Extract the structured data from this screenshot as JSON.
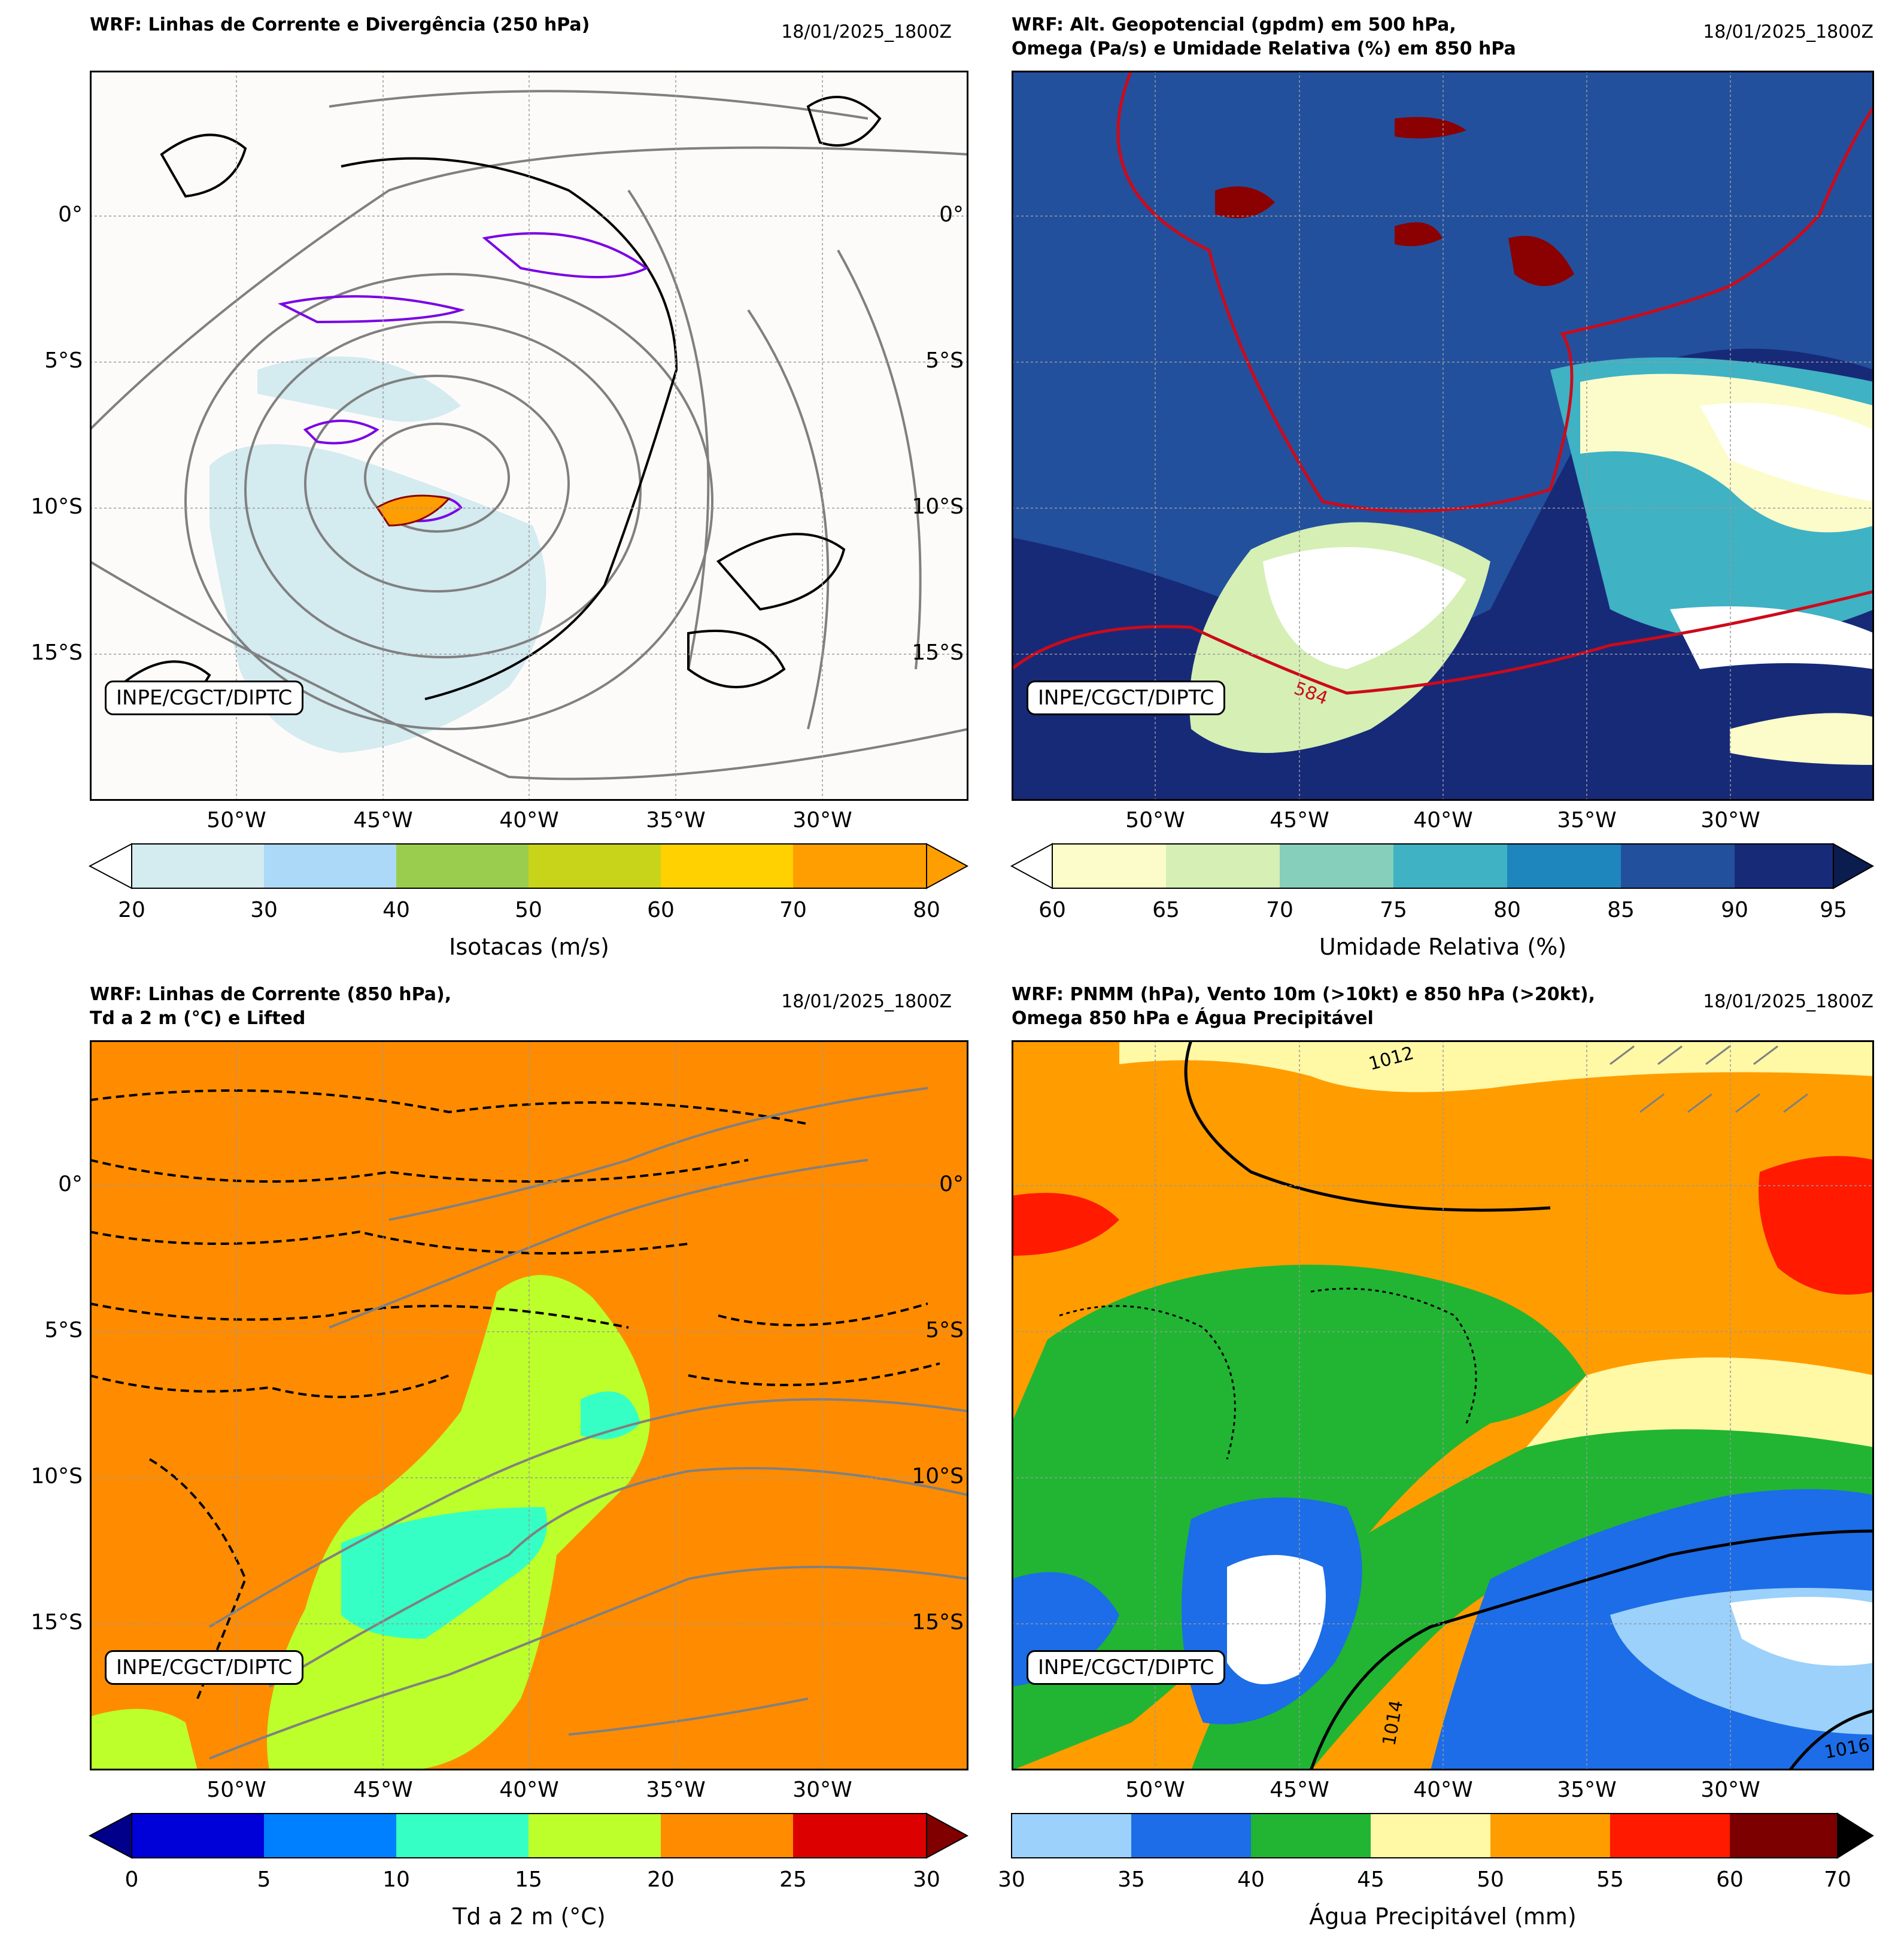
{
  "panels": [
    {
      "title": "WRF: Linhas de Corrente e Divergência (250 hPa)",
      "date": "18/01/2025_1800Z",
      "credit": "INPE/CGCT/DIPTC",
      "colorbar": {
        "label": "Isotacas (m/s)",
        "ticks": [
          "20",
          "30",
          "40",
          "50",
          "60",
          "70",
          "80"
        ],
        "colors": [
          "#d4ebf0",
          "#acd9f8",
          "#9acd4e",
          "#c8d41a",
          "#ffd100",
          "#ff9e00"
        ],
        "extend_low": "#ffffff",
        "extend_high": "#ff9e00"
      },
      "map_background": "#fdfbfa"
    },
    {
      "title": "WRF: Alt. Geopotencial (gpdm) em 500 hPa,\nOmega (Pa/s) e Umidade Relativa (%) em 850 hPa",
      "date": "18/01/2025_1800Z",
      "credit": "INPE/CGCT/DIPTC",
      "contour_label": "584",
      "colorbar": {
        "label": "Umidade Relativa (%)",
        "ticks": [
          "60",
          "65",
          "70",
          "75",
          "80",
          "85",
          "90",
          "95"
        ],
        "colors": [
          "#fcfccb",
          "#d5efb5",
          "#86cfbb",
          "#3fb2c4",
          "#1e86bc",
          "#23509d",
          "#172a78"
        ],
        "extend_low": "#ffffff",
        "extend_high": "#0b1c4f"
      },
      "map_background": "#172a78"
    },
    {
      "title": "WRF: Linhas de Corrente (850 hPa),\nTd a 2 m (°C) e Lifted",
      "date": "18/01/2025_1800Z",
      "credit": "INPE/CGCT/DIPTC",
      "colorbar": {
        "label": "Td a 2 m (°C)",
        "ticks": [
          "0",
          "5",
          "10",
          "15",
          "20",
          "25",
          "30"
        ],
        "colors": [
          "#0000d9",
          "#007fff",
          "#35ffc4",
          "#bcff2a",
          "#ff8c00",
          "#dd0000"
        ],
        "extend_low": "#00008b",
        "extend_high": "#800000"
      },
      "map_background": "#ff8c00"
    },
    {
      "title": "WRF: PNMM (hPa), Vento 10m (>10kt) e 850 hPa (>20kt),\nOmega 850 hPa e Água Precipitável",
      "date": "18/01/2025_1800Z",
      "credit": "INPE/CGCT/DIPTC",
      "contour_labels": [
        "1014",
        "1016",
        "1012"
      ],
      "colorbar": {
        "label": "Água Precipitável (mm)",
        "ticks": [
          "30",
          "35",
          "40",
          "45",
          "50",
          "55",
          "60",
          "70"
        ],
        "colors": [
          "#9bd1fa",
          "#1c6de7",
          "#21b533",
          "#fff8a5",
          "#ff9d00",
          "#ff1a00",
          "#7d0000"
        ],
        "extend_low": "#9bd1fa",
        "extend_high": "#000000"
      },
      "map_background": "#ff9d00"
    }
  ],
  "lat_labels": [
    "0°",
    "5°S",
    "10°S",
    "15°S"
  ],
  "lon_labels": [
    "50°W",
    "45°W",
    "40°W",
    "35°W",
    "30°W"
  ]
}
